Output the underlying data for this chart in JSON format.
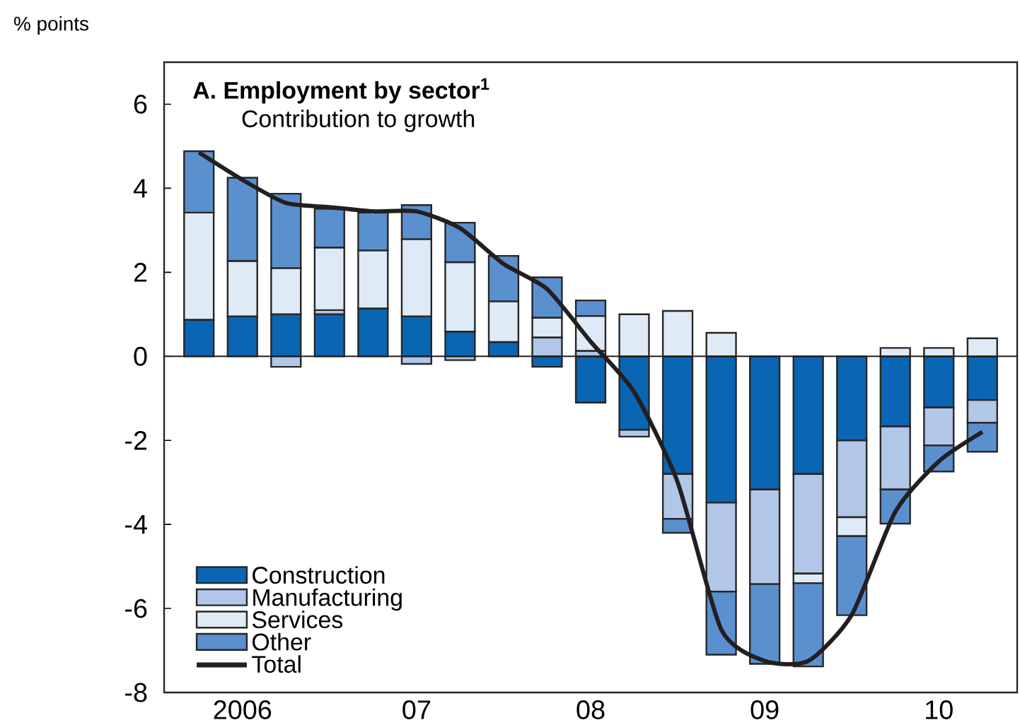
{
  "chart_data": {
    "type": "bar",
    "stacked": true,
    "title": "A. Employment by sector$^{1}$",
    "subtitle": "Contribution to growth",
    "ylabel": "% points",
    "categories": [
      null,
      "2006",
      null,
      null,
      null,
      "07",
      null,
      null,
      null,
      "08",
      null,
      null,
      null,
      "09",
      null,
      null,
      null,
      "10",
      null
    ],
    "series": [
      {
        "name": "Construction",
        "color": "#0a65b3",
        "values": [
          0.87,
          0.95,
          1.0,
          1.0,
          1.14,
          0.95,
          0.59,
          0.34,
          -0.25,
          -1.1,
          -1.75,
          -2.8,
          -3.48,
          -3.17,
          -2.8,
          -2.0,
          -1.67,
          -1.22,
          -1.04
        ]
      },
      {
        "name": "Manufacturing",
        "color": "#b2c6e8",
        "values": [
          0,
          0,
          -0.25,
          0.1,
          0,
          -0.18,
          -0.09,
          0,
          0.45,
          0.13,
          -0.16,
          -1.07,
          -2.12,
          -2.25,
          -2.37,
          -1.83,
          -1.5,
          -0.9,
          -0.54
        ]
      },
      {
        "name": "Services",
        "color": "#dfeaf7",
        "values": [
          2.55,
          1.32,
          1.1,
          1.49,
          1.38,
          1.84,
          1.65,
          0.97,
          0.47,
          0.83,
          1.0,
          1.08,
          0.56,
          0,
          -0.23,
          -0.45,
          0.2,
          0.2,
          0.43
        ]
      },
      {
        "name": "Other",
        "color": "#5b90cf",
        "values": [
          1.46,
          1.98,
          1.77,
          0.92,
          0.9,
          0.81,
          0.94,
          1.08,
          0.96,
          0.37,
          0,
          -0.33,
          -1.5,
          -1.9,
          -1.98,
          -1.88,
          -0.81,
          -0.62,
          -0.69
        ]
      },
      {
        "name": "Total",
        "type": "line",
        "color": "#231f20",
        "values": [
          4.85,
          4.2,
          3.65,
          3.55,
          3.45,
          3.45,
          3.05,
          2.2,
          1.6,
          0.35,
          -0.85,
          -3.0,
          -6.5,
          -7.25,
          -7.25,
          -6.15,
          -3.7,
          -2.5,
          -1.8
        ]
      }
    ],
    "ylim": [
      -8,
      7
    ],
    "yticks": [
      -8,
      -6,
      -4,
      -2,
      0,
      2,
      4,
      6
    ],
    "ref_lines": [
      {
        "axis": "y",
        "value": 0,
        "color": "#231f20"
      }
    ],
    "legend": "bottom left",
    "grid": false
  }
}
